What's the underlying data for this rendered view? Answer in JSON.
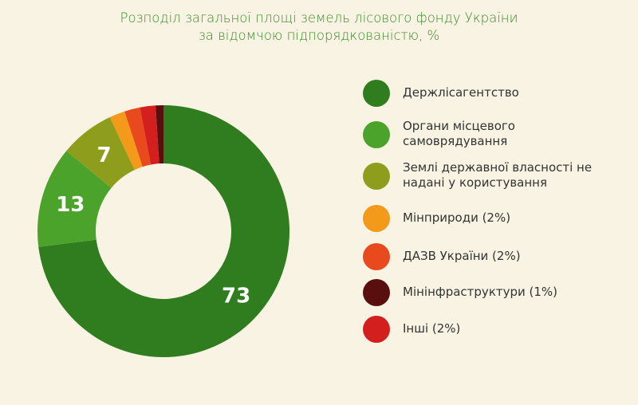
{
  "title": {
    "line1": "Розподіл загальної площі земель лісового фонду України",
    "line2": "за відомчою підпорядкованістю, %"
  },
  "chart_data": {
    "type": "pie",
    "title": "Розподіл загальної площі земель лісового фонду України за відомчою підпорядкованістю, %",
    "donut": true,
    "legend_position": "right",
    "series": [
      {
        "name": "Держлісагентство",
        "value": 73,
        "color": "#2f7d1f",
        "label": "73"
      },
      {
        "name": "Органи місцевого самоврядування",
        "value": 13,
        "color": "#4ca32b",
        "label": "13"
      },
      {
        "name": "Землі державної власності не надані у користування",
        "value": 7,
        "color": "#8e9e1c",
        "label": "7"
      },
      {
        "name": "Мінприроди (2%)",
        "value": 2,
        "color": "#f39a1a",
        "label": ""
      },
      {
        "name": "ДАЗВ України (2%)",
        "value": 2,
        "color": "#e8491d",
        "label": ""
      },
      {
        "name": "Інші (2%)",
        "value": 2,
        "color": "#d3201f",
        "label": ""
      },
      {
        "name": "Мінінфраструктури (1%)",
        "value": 1,
        "color": "#5a0f0f",
        "label": ""
      }
    ]
  },
  "legend": {
    "items": [
      {
        "line1": "Держлісагентство",
        "line2": "",
        "color": "#2f7d1f"
      },
      {
        "line1": "Органи місцевого",
        "line2": "самоврядування",
        "color": "#4ca32b"
      },
      {
        "line1": "Землі державної власності не",
        "line2": "надані у користування",
        "color": "#8e9e1c"
      },
      {
        "line1": "Мінприроди (2%)",
        "line2": "",
        "color": "#f39a1a"
      },
      {
        "line1": "ДАЗВ України (2%)",
        "line2": "",
        "color": "#e8491d"
      },
      {
        "line1": "Мінінфраструктури (1%)",
        "line2": "",
        "color": "#5a0f0f"
      },
      {
        "line1": "Інші (2%)",
        "line2": "",
        "color": "#d3201f"
      }
    ]
  }
}
